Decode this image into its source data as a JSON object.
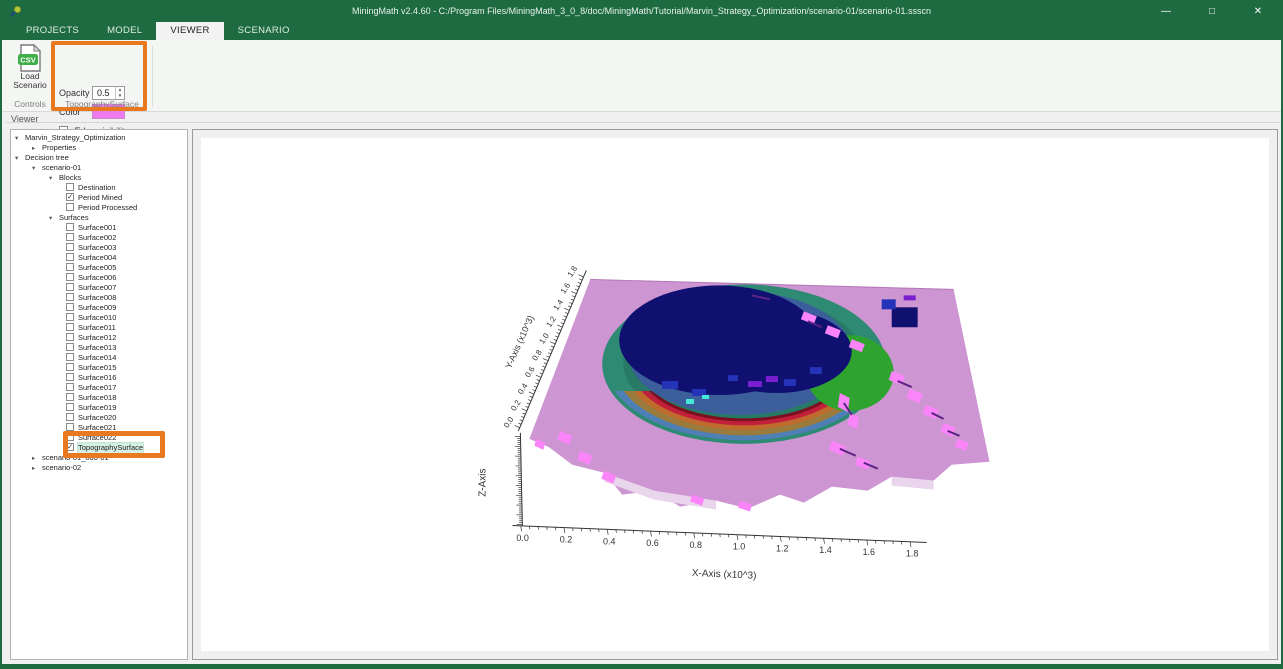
{
  "window": {
    "title": "MiningMath v2.4.60 - C:/Program Files/MiningMath_3_0_8/doc/MiningMath/Tutorial/Marvin_Strategy_Optimization/scenario-01/scenario-01.ssscn",
    "controls": {
      "minimize": "—",
      "maximize": "□",
      "close": "✕"
    }
  },
  "tabs": [
    {
      "label": "PROJECTS",
      "active": false
    },
    {
      "label": "MODEL",
      "active": false
    },
    {
      "label": "VIEWER",
      "active": true
    },
    {
      "label": "SCENARIO",
      "active": false
    }
  ],
  "help": {
    "icon_text": "?"
  },
  "ribbon": {
    "load_scenario": {
      "line1": "Load",
      "line2": "Scenario",
      "icon_text": "CSV"
    },
    "controls_group_label": "Controls",
    "topography_group": {
      "opacity_label": "Opacity",
      "opacity_value": "0.5",
      "color_label": "Color",
      "color_value": "#ee7bee",
      "edge_label": "Edge visibility",
      "edge_checked": false,
      "group_label": "TopographySurface"
    }
  },
  "viewer": {
    "group_label": "Viewer"
  },
  "tree": {
    "items": [
      {
        "label": "Marvin_Strategy_Optimization",
        "level": 0,
        "kind": "branch",
        "expanded": true
      },
      {
        "label": "Properties",
        "level": 1,
        "kind": "branch",
        "expanded": false
      },
      {
        "label": "Decision tree",
        "level": 0,
        "kind": "branch",
        "expanded": true
      },
      {
        "label": "scenario-01",
        "level": 1,
        "kind": "branch",
        "expanded": true
      },
      {
        "label": "Blocks",
        "level": 2,
        "kind": "branch",
        "expanded": true
      },
      {
        "label": "Destination",
        "level": 3,
        "kind": "check",
        "checked": false
      },
      {
        "label": "Period Mined",
        "level": 3,
        "kind": "check",
        "checked": true
      },
      {
        "label": "Period Processed",
        "level": 3,
        "kind": "check",
        "checked": false
      },
      {
        "label": "Surfaces",
        "level": 2,
        "kind": "branch",
        "expanded": true
      },
      {
        "label": "Surface001",
        "level": 3,
        "kind": "check",
        "checked": false
      },
      {
        "label": "Surface002",
        "level": 3,
        "kind": "check",
        "checked": false
      },
      {
        "label": "Surface003",
        "level": 3,
        "kind": "check",
        "checked": false
      },
      {
        "label": "Surface004",
        "level": 3,
        "kind": "check",
        "checked": false
      },
      {
        "label": "Surface005",
        "level": 3,
        "kind": "check",
        "checked": false
      },
      {
        "label": "Surface006",
        "level": 3,
        "kind": "check",
        "checked": false
      },
      {
        "label": "Surface007",
        "level": 3,
        "kind": "check",
        "checked": false
      },
      {
        "label": "Surface008",
        "level": 3,
        "kind": "check",
        "checked": false
      },
      {
        "label": "Surface009",
        "level": 3,
        "kind": "check",
        "checked": false
      },
      {
        "label": "Surface010",
        "level": 3,
        "kind": "check",
        "checked": false
      },
      {
        "label": "Surface011",
        "level": 3,
        "kind": "check",
        "checked": false
      },
      {
        "label": "Surface012",
        "level": 3,
        "kind": "check",
        "checked": false
      },
      {
        "label": "Surface013",
        "level": 3,
        "kind": "check",
        "checked": false
      },
      {
        "label": "Surface014",
        "level": 3,
        "kind": "check",
        "checked": false
      },
      {
        "label": "Surface015",
        "level": 3,
        "kind": "check",
        "checked": false
      },
      {
        "label": "Surface016",
        "level": 3,
        "kind": "check",
        "checked": false
      },
      {
        "label": "Surface017",
        "level": 3,
        "kind": "check",
        "checked": false
      },
      {
        "label": "Surface018",
        "level": 3,
        "kind": "check",
        "checked": false
      },
      {
        "label": "Surface019",
        "level": 3,
        "kind": "check",
        "checked": false
      },
      {
        "label": "Surface020",
        "level": 3,
        "kind": "check",
        "checked": false
      },
      {
        "label": "Surface021",
        "level": 3,
        "kind": "check",
        "checked": false
      },
      {
        "label": "Surface022",
        "level": 3,
        "kind": "check",
        "checked": false
      },
      {
        "label": "TopographySurface",
        "level": 3,
        "kind": "check",
        "checked": true,
        "selected": true
      },
      {
        "label": "scenario-01_000-01",
        "level": 1,
        "kind": "branch",
        "expanded": false
      },
      {
        "label": "scenario-02",
        "level": 1,
        "kind": "branch",
        "expanded": false
      }
    ]
  },
  "chart_data": {
    "type": "surface",
    "title": "",
    "xlabel": "X-Axis (x10^3)",
    "ylabel": "Y-Axis (x10^3)",
    "zlabel": "Z-Axis",
    "x_ticks": [
      "0.0",
      "0.2",
      "0.4",
      "0.6",
      "0.8",
      "1.0",
      "1.2",
      "1.4",
      "1.6",
      "1.8"
    ],
    "y_ticks": [
      "0.0",
      "0.2",
      "0.4",
      "0.6",
      "0.8",
      "1.0",
      "1.2",
      "1.4",
      "1.6",
      "1.8"
    ],
    "xlim": [
      0,
      1.8
    ],
    "ylim": [
      0,
      1.8
    ],
    "grid": false,
    "legend": "none",
    "description": "3D view of Marvin deposit: semi-transparent violet topography surface (opacity 0.5) with nested open-pit benches colored by mining period - navy center, slate/teal/green mid benches, steel-blue, olive, orange and red lower benches at the pit front rim",
    "palette": {
      "topography": "#ca8fcf",
      "surface_edge": "#a765ad",
      "ridge_highlight": "#fb84fb",
      "ridge_shadow": "#5c2585",
      "edge_light": "#e9d6ec",
      "pit_teal": "#2e8a72",
      "pit_teal_dark": "#277a66",
      "pit_slate": "#3c5f9b",
      "pit_green": "#2fa32f",
      "pit_navy": "#101070",
      "pit_royal": "#2433b8",
      "pit_purple": "#7a1fd0",
      "pit_cyan": "#45ead8",
      "rim_steel": "#4e7fb5",
      "rim_olive": "#9a7b3c",
      "rim_orange": "#bf6b2e",
      "rim_red": "#c2203a",
      "rim_darkred": "#7c1020"
    },
    "annotation_color": "#e8791f",
    "brand_green": "#1e6b41"
  }
}
